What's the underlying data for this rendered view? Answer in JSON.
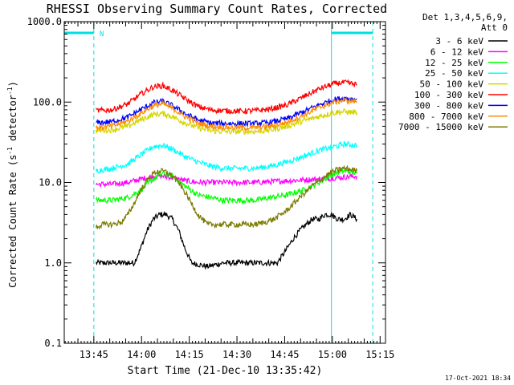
{
  "chart_data": {
    "type": "line",
    "title": "RHESSI Observing Summary Count Rates, Corrected",
    "xlabel": "Start Time (21-Dec-10 13:35:42)",
    "ylabel_main": "Corrected Count Rate (s",
    "ylabel_sup1": "-1",
    "ylabel_mid": " detector",
    "ylabel_sup2": "-1",
    "ylabel_end": ")",
    "y_scale": "log",
    "ylim": [
      0.1,
      1000
    ],
    "y_ticks": [
      {
        "v": 0.1,
        "label": "0.1"
      },
      {
        "v": 1,
        "label": "1.0"
      },
      {
        "v": 10,
        "label": "10.0"
      },
      {
        "v": 100,
        "label": "100.0"
      },
      {
        "v": 1000,
        "label": "1000.0"
      }
    ],
    "x_unit": "minutes after 13:35:42",
    "xlim": [
      0,
      101
    ],
    "x_ticks": [
      {
        "v": 9.3,
        "label": "13:45"
      },
      {
        "v": 24.3,
        "label": "14:00"
      },
      {
        "v": 39.3,
        "label": "14:15"
      },
      {
        "v": 54.3,
        "label": "14:30"
      },
      {
        "v": 69.3,
        "label": "14:45"
      },
      {
        "v": 84.3,
        "label": "15:00"
      },
      {
        "v": 99.3,
        "label": "15:15"
      }
    ],
    "legend_header": [
      "Det 1,3,4,5,6,9,",
      "Att 0"
    ],
    "legend_position": "right",
    "series": [
      {
        "name": "3 - 6 keV",
        "color": "#000000",
        "x": [
          10,
          12,
          15,
          18,
          20,
          22,
          24,
          26,
          28,
          30,
          32,
          34,
          36,
          38,
          40,
          45,
          50,
          55,
          60,
          63,
          65,
          67,
          70,
          72,
          74,
          76,
          78,
          80,
          82,
          84,
          86,
          88,
          90,
          92
        ],
        "y": [
          1.0,
          1.0,
          1.0,
          1.0,
          1.0,
          1.0,
          1.5,
          2.5,
          3.5,
          4.0,
          4.0,
          3.5,
          2.5,
          1.5,
          1.0,
          0.9,
          1.0,
          1.0,
          1.0,
          1.0,
          1.0,
          1.0,
          1.5,
          2.0,
          2.5,
          3.0,
          3.5,
          3.5,
          4.0,
          4.0,
          3.5,
          3.5,
          4.0,
          3.5
        ]
      },
      {
        "name": "6 - 12 keV",
        "color": "#ff00ff",
        "x": [
          10,
          15,
          20,
          24,
          28,
          31,
          34,
          38,
          42,
          50,
          60,
          70,
          80,
          86,
          92
        ],
        "y": [
          9.5,
          9.5,
          10,
          11,
          12,
          12,
          11.5,
          10.5,
          10,
          10,
          10,
          10.5,
          11,
          11.5,
          12
        ]
      },
      {
        "name": "12 - 25 keV",
        "color": "#00ff00",
        "x": [
          10,
          15,
          20,
          24,
          28,
          31,
          34,
          38,
          42,
          46,
          50,
          55,
          60,
          65,
          70,
          75,
          80,
          85,
          88,
          92
        ],
        "y": [
          6,
          6,
          6.5,
          8,
          11,
          13,
          12,
          9,
          7,
          6.5,
          6,
          6,
          6,
          6.5,
          7,
          8,
          10,
          13,
          14,
          13
        ]
      },
      {
        "name": "25 - 50 keV",
        "color": "#00ffff",
        "x": [
          10,
          15,
          20,
          24,
          28,
          31,
          34,
          38,
          42,
          46,
          50,
          55,
          60,
          65,
          70,
          75,
          80,
          85,
          88,
          92
        ],
        "y": [
          14,
          15,
          17,
          22,
          28,
          29,
          26,
          21,
          18,
          16,
          15,
          15,
          15,
          16,
          18,
          21,
          25,
          28,
          30,
          29
        ]
      },
      {
        "name": "50 - 100 keV",
        "color": "#d4d400",
        "x": [
          10,
          15,
          20,
          24,
          28,
          31,
          34,
          38,
          42,
          46,
          50,
          55,
          60,
          65,
          70,
          75,
          80,
          85,
          88,
          92
        ],
        "y": [
          44,
          45,
          50,
          60,
          70,
          72,
          66,
          55,
          48,
          44,
          43,
          43,
          43,
          45,
          50,
          58,
          66,
          74,
          76,
          74
        ]
      },
      {
        "name": "100 - 300 keV",
        "color": "#ff0000",
        "x": [
          10,
          15,
          20,
          24,
          28,
          31,
          34,
          38,
          42,
          46,
          50,
          55,
          60,
          65,
          70,
          75,
          80,
          85,
          88,
          92
        ],
        "y": [
          78,
          80,
          95,
          125,
          155,
          160,
          140,
          110,
          88,
          80,
          78,
          77,
          78,
          82,
          92,
          115,
          145,
          170,
          175,
          165
        ]
      },
      {
        "name": "300 - 800 keV",
        "color": "#0000ff",
        "x": [
          10,
          15,
          20,
          24,
          28,
          31,
          34,
          38,
          42,
          46,
          50,
          55,
          60,
          65,
          70,
          75,
          80,
          85,
          88,
          92
        ],
        "y": [
          55,
          57,
          65,
          80,
          98,
          102,
          90,
          72,
          60,
          55,
          54,
          54,
          54,
          56,
          62,
          75,
          92,
          108,
          112,
          108
        ]
      },
      {
        "name": "800 - 7000 keV",
        "color": "#ff8c00",
        "x": [
          10,
          15,
          20,
          24,
          28,
          31,
          34,
          38,
          42,
          46,
          50,
          55,
          60,
          65,
          70,
          75,
          80,
          85,
          88,
          92
        ],
        "y": [
          48,
          50,
          58,
          72,
          90,
          95,
          84,
          66,
          55,
          50,
          49,
          48,
          48,
          50,
          56,
          68,
          85,
          100,
          105,
          102
        ]
      },
      {
        "name": "7000 - 15000 keV",
        "color": "#7a7a00",
        "x": [
          10,
          12,
          15,
          18,
          20,
          22,
          24,
          26,
          28,
          30,
          32,
          34,
          36,
          38,
          40,
          42,
          45,
          50,
          55,
          60,
          63,
          66,
          70,
          74,
          78,
          82,
          85,
          88,
          90,
          92
        ],
        "y": [
          2.8,
          3.0,
          3.0,
          3.2,
          4.0,
          5.5,
          8,
          10.5,
          13,
          14,
          13.5,
          12,
          10,
          7.5,
          5.5,
          4.0,
          3.0,
          3.0,
          3.0,
          3.0,
          3.2,
          3.5,
          4.5,
          6.5,
          9,
          12,
          14,
          15,
          14.5,
          14
        ]
      }
    ],
    "attenuator_markers": [
      {
        "label": "N",
        "start": 0,
        "end": 9.3
      },
      {
        "label": "",
        "start": 84.0,
        "end": 97.0
      }
    ],
    "marker_color": "#00e0e0",
    "timestamp": "17-Oct-2021 18:34"
  }
}
